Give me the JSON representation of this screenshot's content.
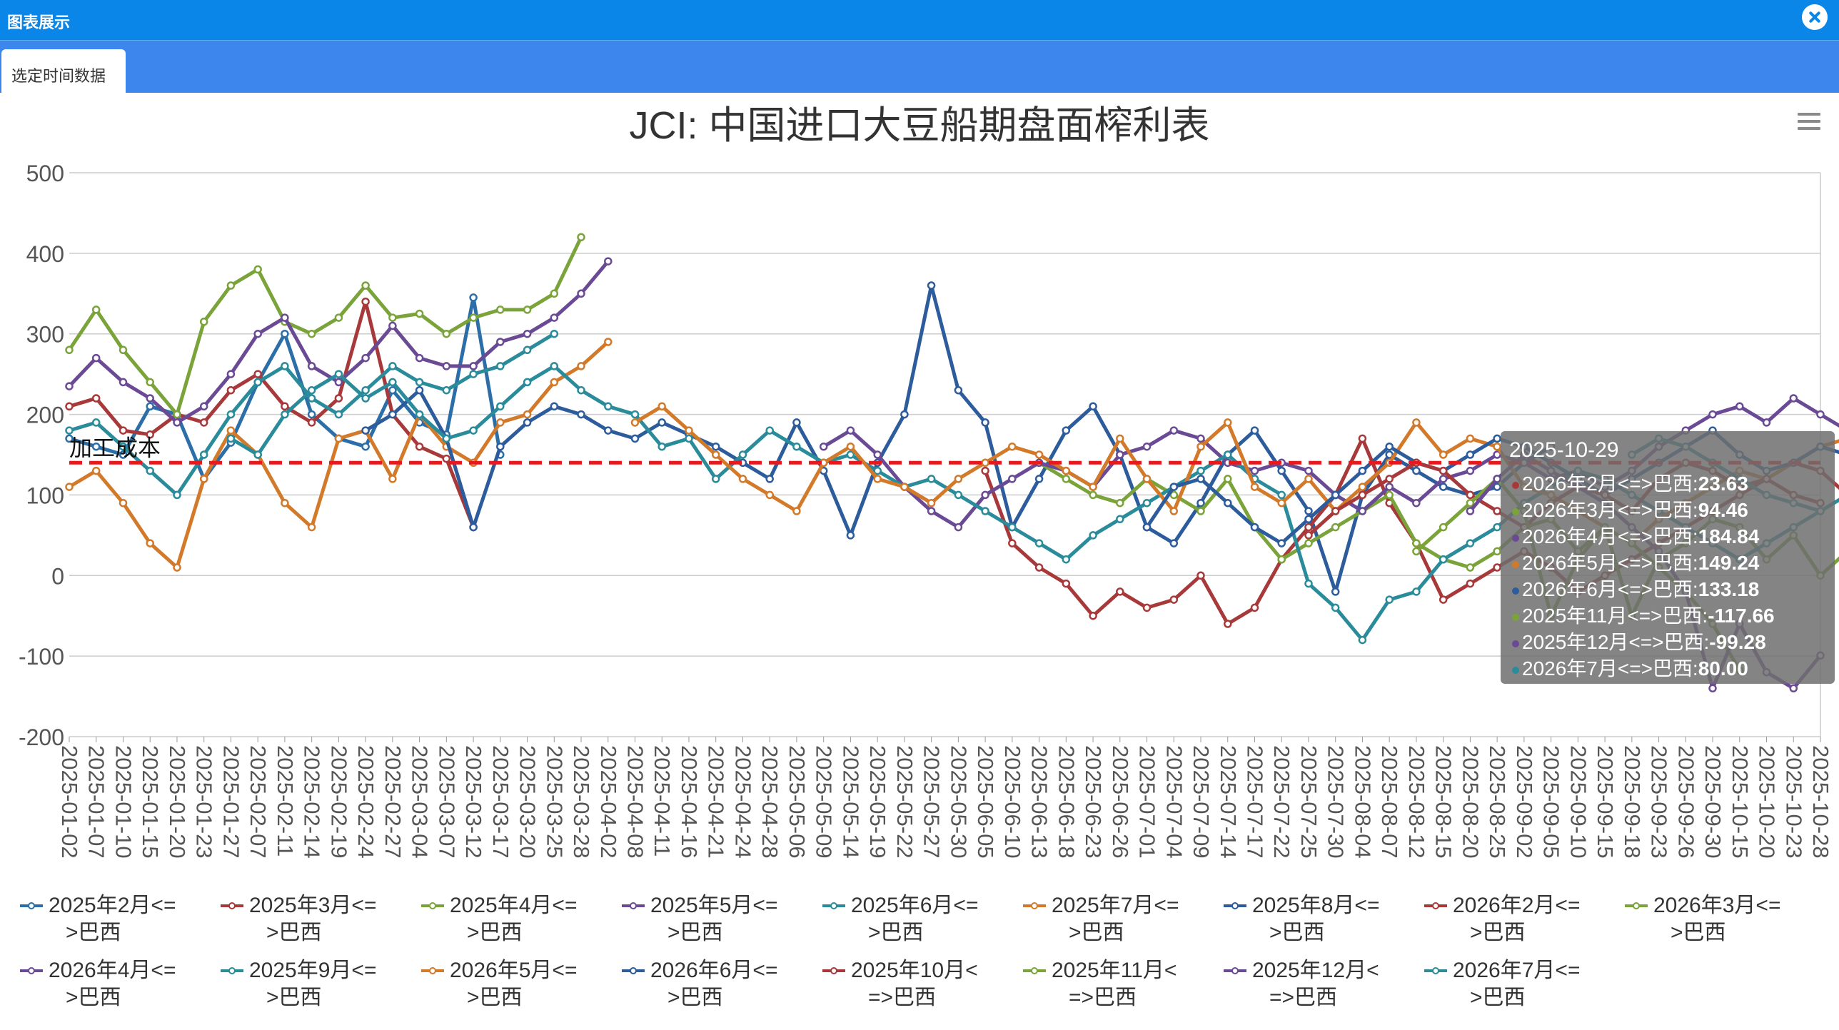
{
  "window": {
    "title": "图表展示"
  },
  "tabs": [
    {
      "label": "选定时间数据"
    }
  ],
  "colors": {
    "titlebar": "#0a86e8",
    "tabbar": "#3c86ee",
    "cost_line": "#e8181c"
  },
  "chart_data": {
    "type": "line",
    "title": "JCI: 中国进口大豆船期盘面榨利表",
    "ylim": [
      -200,
      500
    ],
    "yticks": [
      -200,
      -100,
      0,
      100,
      200,
      300,
      400,
      500
    ],
    "grid": true,
    "legend_position": "bottom",
    "reference_line": {
      "label": "加工成本",
      "value": 140,
      "color": "#e8181c",
      "style": "dashed"
    },
    "x_tick_labels": [
      "2025-01-02",
      "2025-01-07",
      "2025-01-10",
      "2025-01-15",
      "2025-01-20",
      "2025-01-23",
      "2025-01-27",
      "2025-02-07",
      "2025-02-11",
      "2025-02-14",
      "2025-02-19",
      "2025-02-24",
      "2025-02-27",
      "2025-03-04",
      "2025-03-07",
      "2025-03-12",
      "2025-03-17",
      "2025-03-20",
      "2025-03-25",
      "2025-03-28",
      "2025-04-02",
      "2025-04-08",
      "2025-04-11",
      "2025-04-16",
      "2025-04-21",
      "2025-04-24",
      "2025-04-28",
      "2025-05-06",
      "2025-05-09",
      "2025-05-14",
      "2025-05-19",
      "2025-05-22",
      "2025-05-27",
      "2025-05-30",
      "2025-06-05",
      "2025-06-10",
      "2025-06-13",
      "2025-06-18",
      "2025-06-23",
      "2025-06-26",
      "2025-07-01",
      "2025-07-04",
      "2025-07-09",
      "2025-07-14",
      "2025-07-17",
      "2025-07-22",
      "2025-07-25",
      "2025-07-30",
      "2025-08-04",
      "2025-08-07",
      "2025-08-12",
      "2025-08-15",
      "2025-08-20",
      "2025-08-25",
      "2025-09-02",
      "2025-09-05",
      "2025-09-10",
      "2025-09-15",
      "2025-09-18",
      "2025-09-23",
      "2025-09-26",
      "2025-09-30",
      "2025-10-15",
      "2025-10-20",
      "2025-10-23",
      "2025-10-28"
    ],
    "series": [
      {
        "name": "2025年2月<=>巴西",
        "color": "#2c6ea8",
        "start": 0,
        "values": [
          170,
          160,
          150,
          210,
          200,
          120,
          165,
          240,
          300,
          200,
          170,
          160,
          230,
          190,
          175,
          345,
          150
        ]
      },
      {
        "name": "2025年3月<=>巴西",
        "color": "#a8393b",
        "start": 0,
        "values": [
          210,
          220,
          180,
          175,
          200,
          190,
          230,
          250,
          210,
          190,
          220,
          340,
          200,
          160,
          145,
          60
        ]
      },
      {
        "name": "2025年4月<=>巴西",
        "color": "#7aa33a",
        "start": 0,
        "values": [
          280,
          330,
          280,
          240,
          200,
          315,
          360,
          380,
          315,
          300,
          320,
          360,
          320,
          325,
          300,
          320,
          330,
          330,
          350,
          420
        ]
      },
      {
        "name": "2025年5月<=>巴西",
        "color": "#6a4a95",
        "start": 0,
        "values": [
          235,
          270,
          240,
          220,
          190,
          210,
          250,
          300,
          320,
          260,
          240,
          270,
          310,
          270,
          260,
          260,
          290,
          300,
          320,
          350,
          390
        ]
      },
      {
        "name": "2025年6月<=>巴西",
        "color": "#2a8b9a",
        "start": 0,
        "values": [
          180,
          190,
          160,
          130,
          100,
          150,
          200,
          240,
          260,
          220,
          200,
          230,
          260,
          240,
          230,
          250,
          260,
          280,
          300
        ]
      },
      {
        "name": "2025年7月<=>巴西",
        "color": "#d27a2a",
        "start": 0,
        "values": [
          110,
          130,
          90,
          40,
          10,
          120,
          180,
          150,
          90,
          60,
          170,
          180,
          120,
          200,
          160,
          140,
          190,
          200,
          240,
          260,
          290
        ]
      },
      {
        "name": "2025年8月<=>巴西",
        "color": "#2d5c9c",
        "start": 11,
        "values": [
          180,
          200,
          230,
          170,
          60,
          160,
          190,
          210,
          200,
          180,
          170,
          190,
          175,
          160,
          140,
          120,
          190,
          130,
          50,
          140,
          200,
          360,
          230,
          190,
          60,
          120,
          180,
          210,
          150,
          60,
          40,
          90,
          150,
          180,
          130,
          80,
          -20,
          100,
          150,
          130,
          110,
          100,
          110,
          140,
          160
        ]
      },
      {
        "name": "2026年2月<=>巴西",
        "color": "#a8393b",
        "start": 34,
        "values": [
          130,
          40,
          10,
          -10,
          -50,
          -20,
          -40,
          -30,
          0,
          -60,
          -40,
          20,
          60,
          100,
          170,
          90,
          40,
          -30,
          -10,
          10,
          30,
          10,
          -20,
          0,
          20,
          40,
          60,
          80,
          100,
          120,
          140,
          130,
          100,
          80,
          110,
          90,
          120,
          130,
          110,
          100,
          90,
          120,
          140,
          160,
          120,
          130,
          110,
          140
        ]
      },
      {
        "name": "2026年3月<=>巴西",
        "color": "#7aa33a",
        "start": 36,
        "values": [
          140,
          120,
          100,
          90,
          120,
          100,
          80,
          120,
          60,
          20,
          40,
          60,
          80,
          100,
          40,
          20,
          10,
          30,
          60,
          70,
          30,
          60,
          -50,
          20,
          40,
          70,
          60,
          20,
          50,
          0,
          30,
          100,
          120,
          150,
          180,
          200,
          140,
          120,
          160,
          170,
          120,
          100,
          80
        ]
      },
      {
        "name": "2026年4月<=>巴西",
        "color": "#6a4a95",
        "start": 28,
        "values": [
          160,
          180,
          150,
          110,
          80,
          60,
          100,
          120,
          140,
          130,
          110,
          150,
          160,
          180,
          170,
          140,
          130,
          140,
          130,
          100,
          80,
          110,
          90,
          120,
          130,
          150,
          140,
          120,
          130,
          110,
          130,
          160,
          180,
          200,
          210,
          190,
          220,
          200,
          180,
          160,
          190,
          200,
          180,
          170,
          200,
          220,
          190,
          180,
          170,
          150,
          140,
          160,
          180,
          200,
          220,
          250,
          270,
          240,
          210,
          200,
          190,
          185
        ]
      },
      {
        "name": "2025年9月<=>巴西",
        "color": "#2a8b9a",
        "start": 6,
        "values": [
          170,
          150,
          200,
          230,
          250,
          220,
          240,
          200,
          170,
          180,
          210,
          240,
          260,
          230,
          210,
          200,
          160,
          170,
          120,
          150,
          180,
          160,
          140,
          150,
          130,
          110,
          120,
          100,
          80,
          60,
          40,
          20,
          50,
          70,
          90,
          110,
          130,
          150,
          120,
          100,
          -10,
          -40,
          -80,
          -30,
          -20,
          20,
          40,
          60,
          90,
          110,
          130,
          120,
          100,
          80,
          60,
          40,
          20,
          40,
          60,
          80,
          100,
          120
        ]
      },
      {
        "name": "2026年5月<=>巴西",
        "color": "#d27a2a",
        "start": 21,
        "values": [
          190,
          210,
          180,
          150,
          120,
          100,
          80,
          140,
          160,
          120,
          110,
          90,
          120,
          140,
          160,
          150,
          130,
          110,
          170,
          120,
          80,
          160,
          190,
          110,
          90,
          120,
          80,
          110,
          140,
          190,
          150,
          170,
          160,
          110,
          100,
          80,
          60,
          40,
          70,
          90,
          110,
          130,
          120,
          140,
          160,
          170,
          190,
          200,
          210,
          190,
          180,
          170,
          150
        ]
      },
      {
        "name": "2026年6月<=>巴西",
        "color": "#2d5c9c",
        "start": 40,
        "values": [
          60,
          110,
          120,
          90,
          60,
          40,
          70,
          100,
          130,
          160,
          140,
          130,
          150,
          170,
          160,
          140,
          120,
          100,
          120,
          140,
          160,
          180,
          150,
          130,
          140,
          160,
          150,
          130
        ]
      },
      {
        "name": "2025年10月<=>巴西",
        "color": "#a8393b",
        "start": 46,
        "values": [
          50,
          80,
          100,
          120,
          140,
          130,
          100,
          80,
          60,
          90,
          110,
          100,
          80,
          120,
          140,
          130,
          110,
          120,
          100,
          90
        ]
      },
      {
        "name": "2025年11月<=>巴西",
        "color": "#7aa33a",
        "start": 50,
        "values": [
          30,
          60,
          90,
          120,
          80,
          -50,
          20,
          60,
          40,
          10,
          -20,
          -60,
          -117.66
        ]
      },
      {
        "name": "2025年12月<=>巴西",
        "color": "#6a4a95",
        "start": 52,
        "values": [
          80,
          120,
          150,
          130,
          110,
          90,
          60,
          30,
          -20,
          -140,
          -60,
          -120,
          -140,
          -99.28
        ]
      },
      {
        "name": "2026年7月<=>巴西",
        "color": "#2a8b9a",
        "start": 58,
        "values": [
          150,
          170,
          160,
          140,
          120,
          100,
          90,
          80
        ]
      }
    ],
    "tooltip": {
      "date": "2025-10-29",
      "rows": [
        {
          "label": "2026年2月<=>巴西",
          "value": "23.63",
          "color": "#a8393b"
        },
        {
          "label": "2026年3月<=>巴西",
          "value": "94.46",
          "color": "#7aa33a"
        },
        {
          "label": "2026年4月<=>巴西",
          "value": "184.84",
          "color": "#6a4a95"
        },
        {
          "label": "2026年5月<=>巴西",
          "value": "149.24",
          "color": "#d27a2a"
        },
        {
          "label": "2026年6月<=>巴西",
          "value": "133.18",
          "color": "#2d5c9c"
        },
        {
          "label": "2025年11月<=>巴西",
          "value": "-117.66",
          "color": "#7aa33a"
        },
        {
          "label": "2025年12月<=>巴西",
          "value": "-99.28",
          "color": "#6a4a95"
        },
        {
          "label": "2026年7月<=>巴西",
          "value": "80.00",
          "color": "#2a8b9a"
        }
      ]
    }
  },
  "legend": [
    {
      "line1": "2025年2月<=",
      "line2": ">巴西",
      "color": "#2c6ea8"
    },
    {
      "line1": "2025年3月<=",
      "line2": ">巴西",
      "color": "#a8393b"
    },
    {
      "line1": "2025年4月<=",
      "line2": ">巴西",
      "color": "#7aa33a"
    },
    {
      "line1": "2025年5月<=",
      "line2": ">巴西",
      "color": "#6a4a95"
    },
    {
      "line1": "2025年6月<=",
      "line2": ">巴西",
      "color": "#2a8b9a"
    },
    {
      "line1": "2025年7月<=",
      "line2": ">巴西",
      "color": "#d27a2a"
    },
    {
      "line1": "2025年8月<=",
      "line2": ">巴西",
      "color": "#2d5c9c"
    },
    {
      "line1": "2026年2月<=",
      "line2": ">巴西",
      "color": "#a8393b"
    },
    {
      "line1": "2026年3月<=",
      "line2": ">巴西",
      "color": "#7aa33a"
    },
    {
      "line1": "2026年4月<=",
      "line2": ">巴西",
      "color": "#6a4a95"
    },
    {
      "line1": "2025年9月<=",
      "line2": ">巴西",
      "color": "#2a8b9a"
    },
    {
      "line1": "2026年5月<=",
      "line2": ">巴西",
      "color": "#d27a2a"
    },
    {
      "line1": "2026年6月<=",
      "line2": ">巴西",
      "color": "#2d5c9c"
    },
    {
      "line1": "2025年10月<",
      "line2": "=>巴西",
      "color": "#a8393b"
    },
    {
      "line1": "2025年11月<",
      "line2": "=>巴西",
      "color": "#7aa33a"
    },
    {
      "line1": "2025年12月<",
      "line2": "=>巴西",
      "color": "#6a4a95"
    },
    {
      "line1": "2026年7月<=",
      "line2": ">巴西",
      "color": "#2a8b9a"
    }
  ]
}
